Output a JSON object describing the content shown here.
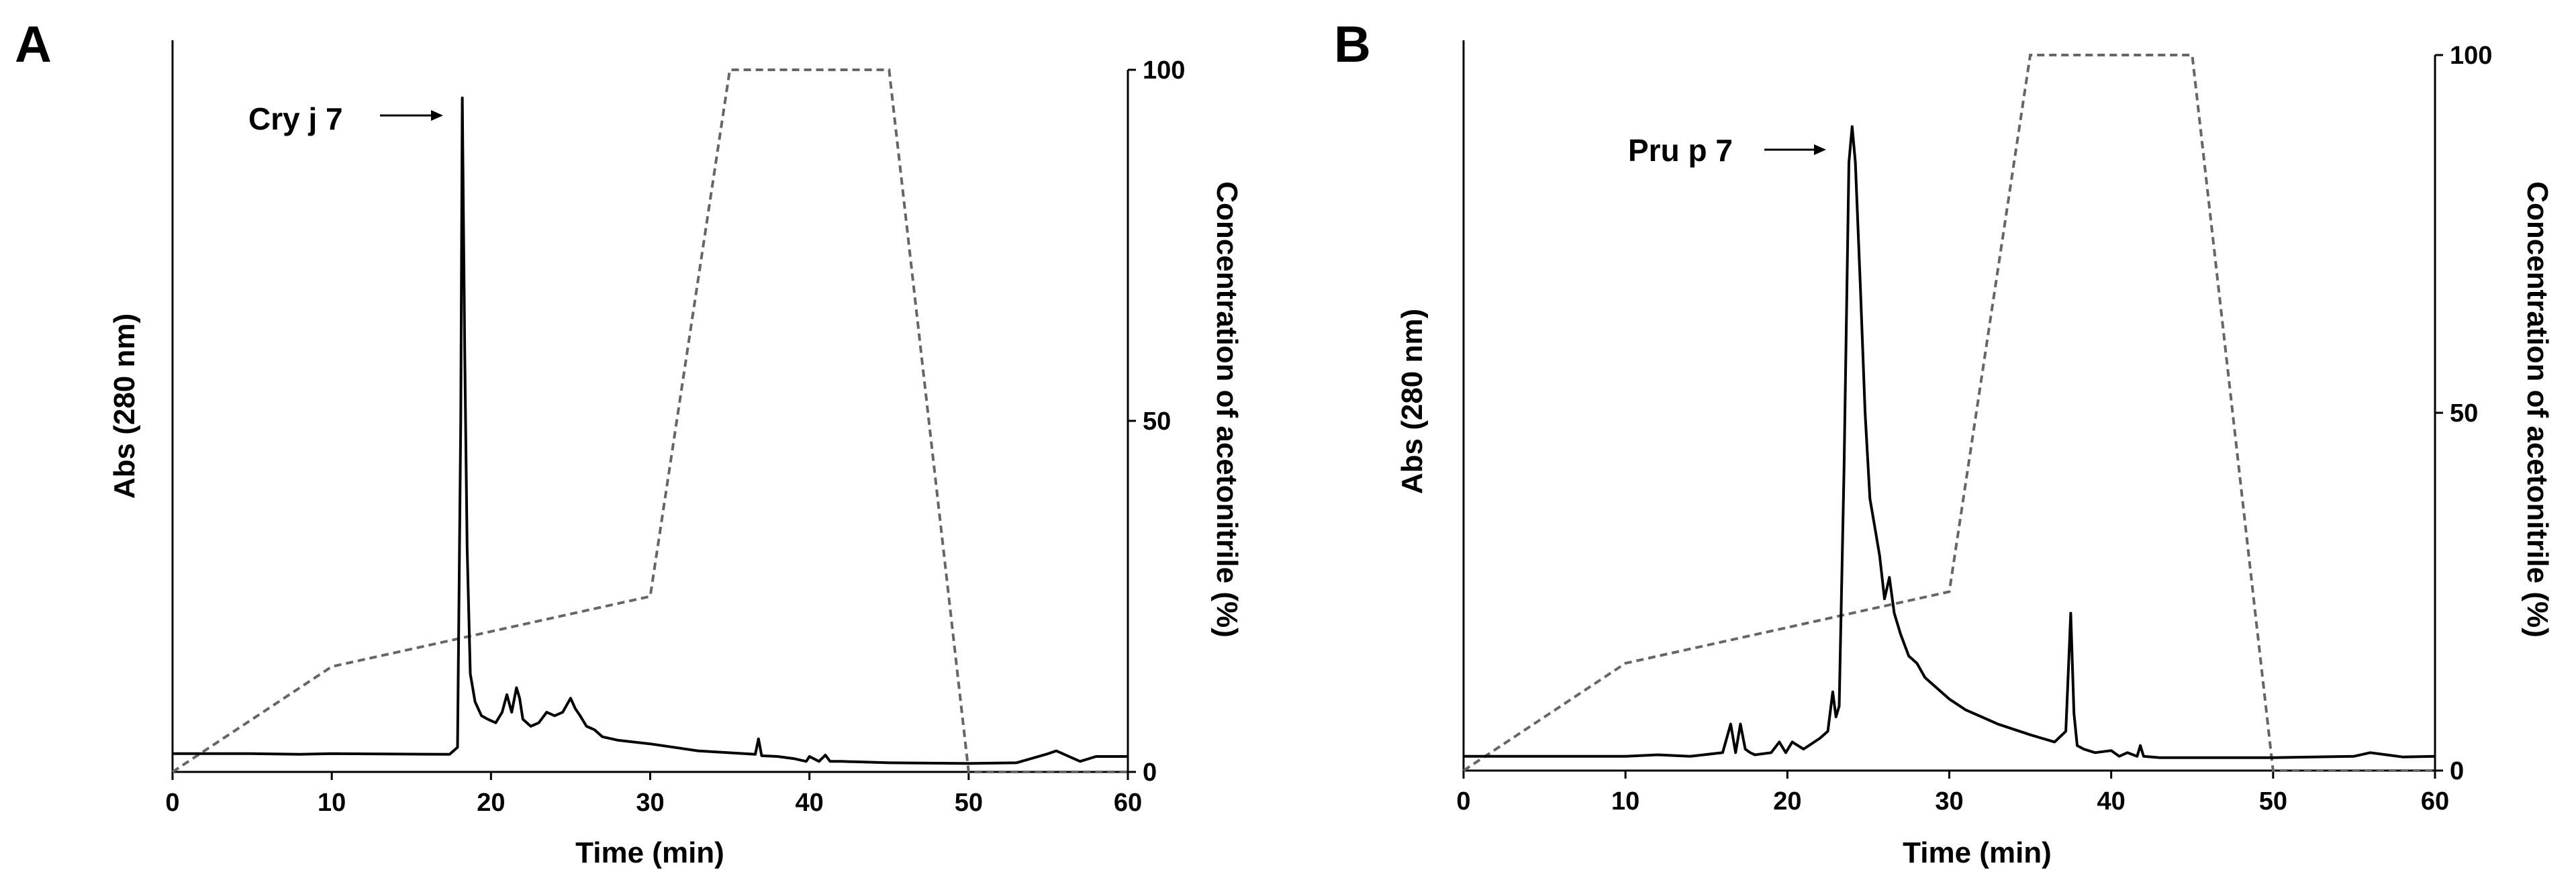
{
  "chart_data": [
    {
      "type": "line",
      "panel": "A",
      "xlabel": "Time (min)",
      "ylabel": "Abs (280 nm)",
      "y2label": "Concentration of acetonitrile (%)",
      "xlim": [
        0,
        60
      ],
      "xticks": [
        "0",
        "10",
        "20",
        "30",
        "40",
        "50",
        "60"
      ],
      "y2lim": [
        0,
        100
      ],
      "y2ticks": [
        "0",
        "50",
        "100"
      ],
      "annotation": "Cry j 7",
      "annotation_x": 18.2,
      "series": [
        {
          "axis": "left",
          "x": [
            0,
            5,
            8,
            10,
            17.4,
            17.9,
            18.1,
            18.2,
            18.35,
            18.5,
            18.7,
            19.0,
            19.4,
            19.8,
            20.3,
            20.7,
            21.0,
            21.3,
            21.6,
            21.8,
            22.0,
            22.5,
            23.0,
            23.5,
            24.0,
            24.5,
            25.0,
            25.3,
            25.6,
            26.0,
            26.5,
            27.0,
            28.0,
            30.0,
            33.0,
            36.6,
            36.8,
            37.0,
            38.0,
            39.0,
            39.8,
            40.0,
            40.6,
            41.0,
            41.3,
            42.0,
            45.0,
            50.0,
            53.0,
            55.0,
            55.5,
            57.0,
            58.0,
            60.0
          ],
          "y": [
            2.6,
            2.6,
            2.5,
            2.6,
            2.5,
            3.5,
            50.0,
            96.0,
            60.0,
            32.0,
            14.0,
            10.0,
            8.0,
            7.5,
            7.0,
            8.5,
            11.0,
            8.5,
            12.0,
            10.5,
            7.5,
            6.5,
            7.0,
            8.5,
            8.0,
            8.5,
            10.5,
            9.0,
            8.0,
            6.5,
            6.0,
            5.0,
            4.5,
            4.0,
            3.0,
            2.5,
            4.7,
            2.3,
            2.2,
            1.9,
            1.5,
            2.2,
            1.5,
            2.4,
            1.5,
            1.5,
            1.3,
            1.2,
            1.3,
            2.6,
            3.0,
            1.5,
            2.2,
            2.2
          ]
        },
        {
          "axis": "right",
          "x": [
            0,
            10,
            30,
            35,
            45,
            50,
            60
          ],
          "y": [
            0,
            15,
            25,
            100,
            100,
            0,
            0
          ]
        }
      ]
    },
    {
      "type": "line",
      "panel": "B",
      "xlabel": "Time (min)",
      "ylabel": "Abs (280 nm)",
      "y2label": "Concentration of acetonitrile (%)",
      "xlim": [
        0,
        60
      ],
      "xticks": [
        "0",
        "10",
        "20",
        "30",
        "40",
        "50",
        "60"
      ],
      "y2lim": [
        0,
        100
      ],
      "y2ticks": [
        "0",
        "50",
        "100"
      ],
      "annotation": "Pru p 7",
      "annotation_x": 24.1,
      "series": [
        {
          "axis": "left",
          "x": [
            0,
            10,
            12,
            14,
            16.0,
            16.5,
            16.8,
            17.1,
            17.4,
            17.7,
            18.0,
            19.0,
            19.5,
            19.9,
            20.3,
            21.0,
            22.0,
            22.5,
            22.8,
            23.0,
            23.2,
            23.5,
            23.8,
            24.0,
            24.2,
            24.5,
            24.8,
            25.1,
            25.4,
            25.7,
            26.0,
            26.3,
            26.6,
            27.0,
            27.5,
            28.0,
            28.5,
            29.0,
            30.0,
            31.0,
            32.0,
            33.0,
            35.0,
            36.5,
            37.2,
            37.5,
            37.7,
            37.9,
            38.3,
            39.0,
            40.0,
            40.5,
            41.0,
            41.6,
            41.8,
            42.0,
            43.0,
            45.0,
            50.0,
            55.0,
            56.0,
            58.0,
            60.0
          ],
          "y": [
            2.0,
            2.0,
            2.2,
            2.0,
            2.5,
            6.5,
            2.5,
            6.5,
            3.0,
            2.5,
            2.2,
            2.5,
            4.0,
            2.5,
            4.0,
            3.0,
            4.5,
            5.5,
            11.0,
            7.5,
            9.0,
            42.0,
            85.0,
            90.0,
            85.0,
            68.0,
            50.0,
            38.0,
            34.0,
            30.0,
            24.0,
            27.0,
            22.0,
            19.0,
            16.0,
            15.0,
            13.0,
            12.0,
            10.0,
            8.5,
            7.5,
            6.5,
            5.0,
            4.0,
            5.5,
            22.0,
            8.0,
            3.5,
            3.0,
            2.5,
            2.8,
            2.0,
            2.5,
            2.0,
            3.5,
            2.0,
            1.8,
            1.8,
            1.8,
            2.0,
            2.5,
            1.9,
            2.0
          ]
        },
        {
          "axis": "right",
          "x": [
            0,
            10,
            30,
            35,
            45,
            50,
            60
          ],
          "y": [
            0,
            15,
            25,
            100,
            100,
            0,
            0
          ]
        }
      ]
    }
  ]
}
